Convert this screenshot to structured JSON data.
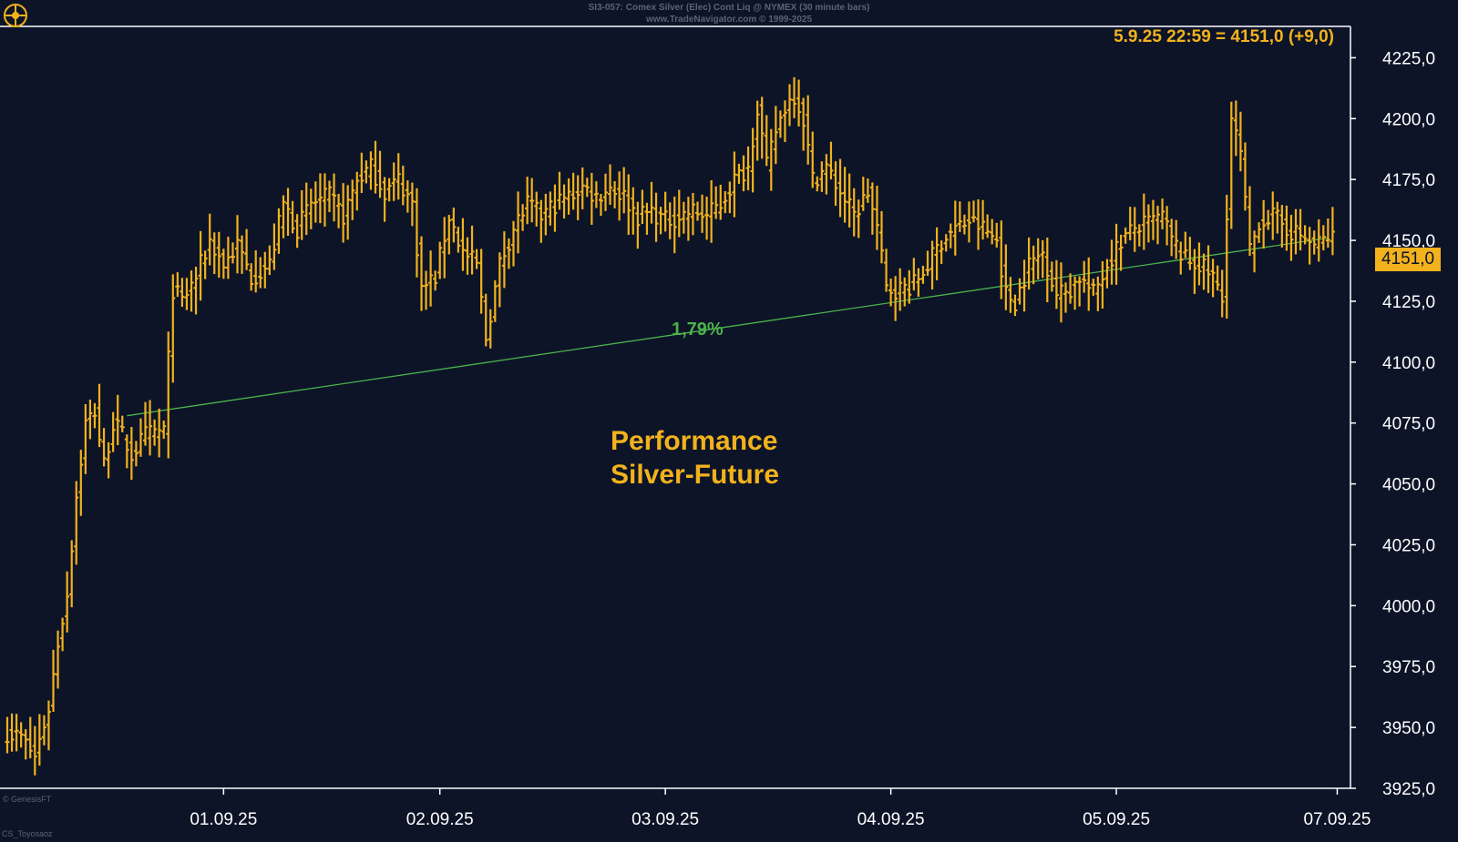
{
  "header": {
    "line1": "SI3-057:  Comex Silver (Elec) Cont Liq @ NYMEX  (30 minute bars)",
    "line2": "www.TradeNavigator.com © 1999-2025"
  },
  "quote_label": "5.9.25 22:59 = 4151,0 (+9,0)",
  "last_price_label": "4151,0",
  "annotations": {
    "performance_pct": "1,79%",
    "title_line1": "Performance",
    "title_line2": "Silver-Future"
  },
  "footer": {
    "copyright": "© GenesisFT",
    "author": "CS_Toyosaoz"
  },
  "colors": {
    "background": "#0d1428",
    "bars": "#f2b21c",
    "trendline": "#4bb34a",
    "axis_text": "#ffffff"
  },
  "chart_data": {
    "type": "ohlc",
    "title": "",
    "xlabel": "",
    "ylabel": "",
    "ylim": [
      3925,
      4237.5
    ],
    "y_ticks": [
      3925,
      3950,
      3975,
      4000,
      4025,
      4050,
      4075,
      4100,
      4125,
      4150,
      4175,
      4200,
      4225
    ],
    "y_tick_labels": [
      "3925,0",
      "3950,0",
      "3975,0",
      "4000,0",
      "4025,0",
      "4050,0",
      "4075,0",
      "4100,0",
      "4125,0",
      "4150,0",
      "4175,0",
      "4200,0",
      "4225,0"
    ],
    "x_ticks": [
      {
        "label": "01.09.25",
        "bar": 47
      },
      {
        "label": "02.09.25",
        "bar": 94
      },
      {
        "label": "03.09.25",
        "bar": 143
      },
      {
        "label": "04.09.25",
        "bar": 192
      },
      {
        "label": "05.09.25",
        "bar": 241
      },
      {
        "label": "07.09.25",
        "bar": 289
      }
    ],
    "bar_count": 289,
    "trendline": {
      "from": {
        "bar": 26,
        "value": 4078
      },
      "to": {
        "bar": 287,
        "value": 4151
      },
      "label": "1,79%"
    },
    "last": {
      "value": 4151.0,
      "change": 9.0,
      "datetime": "5.9.25 22:59"
    },
    "anchors": [
      [
        0,
        3948
      ],
      [
        3,
        3946
      ],
      [
        6,
        3938
      ],
      [
        9,
        3958
      ],
      [
        11,
        3985
      ],
      [
        13,
        4005
      ],
      [
        15,
        4045
      ],
      [
        17,
        4075
      ],
      [
        19,
        4080
      ],
      [
        21,
        4058
      ],
      [
        23,
        4075
      ],
      [
        25,
        4070
      ],
      [
        27,
        4062
      ],
      [
        30,
        4070
      ],
      [
        34,
        4072
      ],
      [
        36,
        4130
      ],
      [
        38,
        4125
      ],
      [
        41,
        4135
      ],
      [
        44,
        4150
      ],
      [
        47,
        4140
      ],
      [
        50,
        4148
      ],
      [
        53,
        4135
      ],
      [
        57,
        4140
      ],
      [
        60,
        4165
      ],
      [
        63,
        4155
      ],
      [
        66,
        4165
      ],
      [
        70,
        4168
      ],
      [
        73,
        4160
      ],
      [
        76,
        4175
      ],
      [
        79,
        4180
      ],
      [
        82,
        4170
      ],
      [
        85,
        4175
      ],
      [
        88,
        4165
      ],
      [
        90,
        4130
      ],
      [
        93,
        4135
      ],
      [
        96,
        4160
      ],
      [
        99,
        4145
      ],
      [
        102,
        4140
      ],
      [
        104,
        4110
      ],
      [
        107,
        4140
      ],
      [
        110,
        4155
      ],
      [
        113,
        4165
      ],
      [
        116,
        4160
      ],
      [
        119,
        4165
      ],
      [
        122,
        4168
      ],
      [
        125,
        4172
      ],
      [
        128,
        4168
      ],
      [
        131,
        4172
      ],
      [
        134,
        4168
      ],
      [
        137,
        4160
      ],
      [
        140,
        4162
      ],
      [
        143,
        4158
      ],
      [
        146,
        4160
      ],
      [
        149,
        4162
      ],
      [
        152,
        4160
      ],
      [
        155,
        4165
      ],
      [
        158,
        4175
      ],
      [
        161,
        4180
      ],
      [
        163,
        4205
      ],
      [
        165,
        4180
      ],
      [
        167,
        4195
      ],
      [
        169,
        4205
      ],
      [
        171,
        4210
      ],
      [
        173,
        4200
      ],
      [
        175,
        4175
      ],
      [
        178,
        4180
      ],
      [
        181,
        4170
      ],
      [
        184,
        4160
      ],
      [
        187,
        4170
      ],
      [
        189,
        4155
      ],
      [
        191,
        4130
      ],
      [
        194,
        4130
      ],
      [
        197,
        4132
      ],
      [
        200,
        4140
      ],
      [
        203,
        4150
      ],
      [
        206,
        4155
      ],
      [
        209,
        4158
      ],
      [
        212,
        4155
      ],
      [
        215,
        4150
      ],
      [
        217,
        4128
      ],
      [
        219,
        4125
      ],
      [
        222,
        4140
      ],
      [
        225,
        4145
      ],
      [
        228,
        4128
      ],
      [
        231,
        4130
      ],
      [
        233,
        4135
      ],
      [
        236,
        4128
      ],
      [
        239,
        4140
      ],
      [
        242,
        4150
      ],
      [
        245,
        4155
      ],
      [
        248,
        4157
      ],
      [
        251,
        4160
      ],
      [
        253,
        4150
      ],
      [
        256,
        4142
      ],
      [
        259,
        4140
      ],
      [
        262,
        4135
      ],
      [
        264,
        4125
      ],
      [
        266,
        4200
      ],
      [
        268,
        4185
      ],
      [
        270,
        4145
      ],
      [
        272,
        4158
      ],
      [
        275,
        4160
      ],
      [
        278,
        4155
      ],
      [
        281,
        4152
      ],
      [
        284,
        4148
      ],
      [
        287,
        4151
      ]
    ]
  }
}
